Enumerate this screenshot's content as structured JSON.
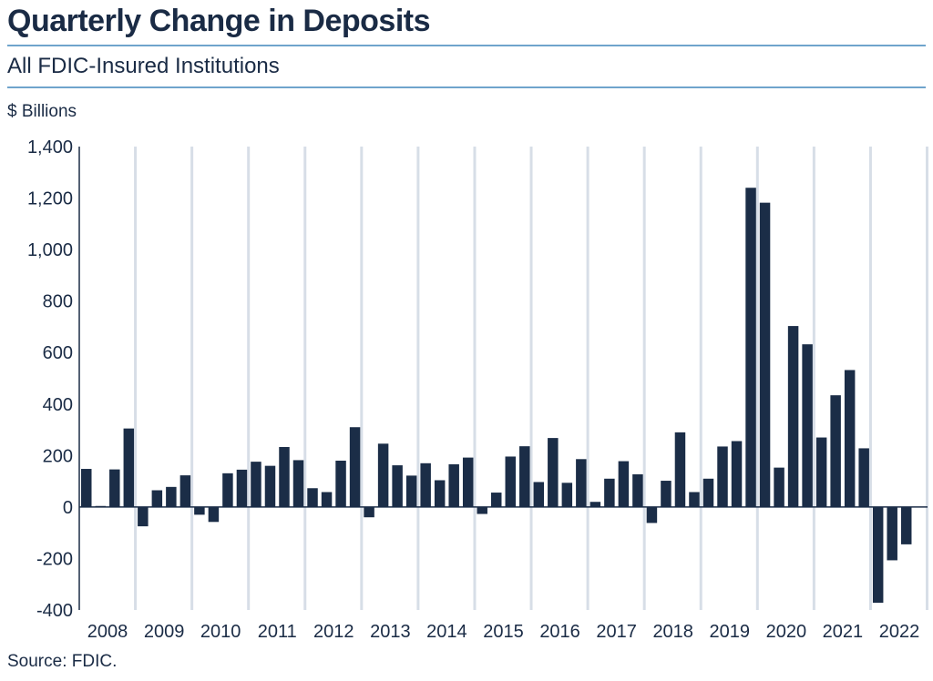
{
  "title": "Quarterly Change in Deposits",
  "subtitle": "All FDIC-Insured Institutions",
  "unit_label": "$ Billions",
  "source": "Source: FDIC.",
  "colors": {
    "bar": "#1b2d47",
    "grid": "#d7dee7",
    "rule": "#6fa4cc",
    "text": "#1a2b45"
  },
  "chart_data": {
    "type": "bar",
    "title": "Quarterly Change in Deposits",
    "subtitle": "All FDIC-Insured Institutions",
    "ylabel": "$ Billions",
    "ylim": [
      -400,
      1400
    ],
    "yticks": [
      -400,
      -200,
      0,
      200,
      400,
      600,
      800,
      1000,
      1200,
      1400
    ],
    "ytick_labels": [
      "-400",
      "-200",
      "0",
      "200",
      "400",
      "600",
      "800",
      "1,000",
      "1,200",
      "1,400"
    ],
    "xtick_labels": [
      "2008",
      "2009",
      "2010",
      "2011",
      "2012",
      "2013",
      "2014",
      "2015",
      "2016",
      "2017",
      "2018",
      "2019",
      "2020",
      "2021",
      "2022"
    ],
    "grid": "vertical lines at year boundaries",
    "categories": [
      "2008Q1",
      "2008Q2",
      "2008Q3",
      "2008Q4",
      "2009Q1",
      "2009Q2",
      "2009Q3",
      "2009Q4",
      "2010Q1",
      "2010Q2",
      "2010Q3",
      "2010Q4",
      "2011Q1",
      "2011Q2",
      "2011Q3",
      "2011Q4",
      "2012Q1",
      "2012Q2",
      "2012Q3",
      "2012Q4",
      "2013Q1",
      "2013Q2",
      "2013Q3",
      "2013Q4",
      "2014Q1",
      "2014Q2",
      "2014Q3",
      "2014Q4",
      "2015Q1",
      "2015Q2",
      "2015Q3",
      "2015Q4",
      "2016Q1",
      "2016Q2",
      "2016Q3",
      "2016Q4",
      "2017Q1",
      "2017Q2",
      "2017Q3",
      "2017Q4",
      "2018Q1",
      "2018Q2",
      "2018Q3",
      "2018Q4",
      "2019Q1",
      "2019Q2",
      "2019Q3",
      "2019Q4",
      "2020Q1",
      "2020Q2",
      "2020Q3",
      "2020Q4",
      "2021Q1",
      "2021Q2",
      "2021Q3",
      "2021Q4",
      "2022Q1",
      "2022Q2",
      "2022Q3",
      "2022Q4"
    ],
    "values": [
      148,
      4,
      146,
      305,
      -75,
      65,
      78,
      123,
      -30,
      -58,
      131,
      145,
      176,
      160,
      233,
      182,
      73,
      58,
      180,
      310,
      -40,
      246,
      162,
      122,
      170,
      104,
      166,
      192,
      -27,
      56,
      196,
      236,
      97,
      268,
      94,
      186,
      20,
      110,
      178,
      127,
      -62,
      102,
      290,
      58,
      110,
      235,
      256,
      1240,
      1182,
      153,
      703,
      632,
      270,
      434,
      532,
      228,
      -372,
      -207,
      -145,
      null
    ]
  }
}
